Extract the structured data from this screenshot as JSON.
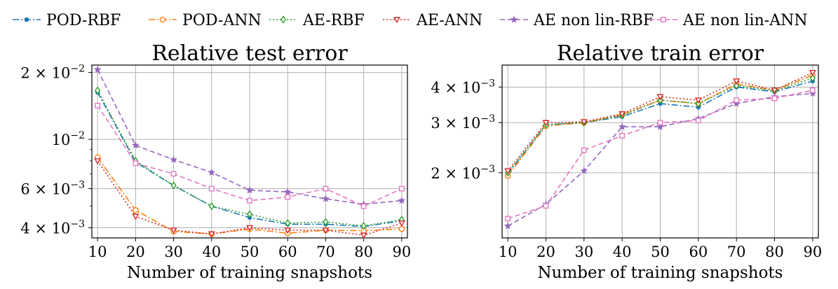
{
  "colors": {
    "POD-RBF": "#1f77b4",
    "POD-ANN": "#ff7f0e",
    "AE-RBF": "#2ca02c",
    "AE-ANN": "#d62728",
    "AE non lin-RBF": "#9467bd",
    "AE non lin-ANN": "#e377c2"
  },
  "legend": {
    "entries": [
      {
        "name": "POD-RBF",
        "marker": "dot",
        "dash": "dashdot"
      },
      {
        "name": "POD-ANN",
        "marker": "circle",
        "dash": "dashdot"
      },
      {
        "name": "AE-RBF",
        "marker": "diamond",
        "dash": "dotted"
      },
      {
        "name": "AE-ANN",
        "marker": "triangle-down",
        "dash": "dotted"
      },
      {
        "name": "AE non lin-RBF",
        "marker": "star",
        "dash": "dashed"
      },
      {
        "name": "AE non lin-ANN",
        "marker": "square",
        "dash": "dashed"
      }
    ]
  },
  "chart_data": [
    {
      "type": "line",
      "title": "Relative test error",
      "xlabel": "Number of training snapshots",
      "ylabel": "",
      "yscale": "log",
      "grid": true,
      "x": [
        10,
        20,
        30,
        40,
        50,
        60,
        70,
        80,
        90
      ],
      "xticks": [
        "10",
        "20",
        "30",
        "40",
        "50",
        "60",
        "70",
        "80",
        "90"
      ],
      "xlim": [
        8.5,
        91.5
      ],
      "ylim": [
        0.0036,
        0.0216
      ],
      "yticks": [
        {
          "value": 0.02,
          "mant": "2 × 10",
          "exp": "−2"
        },
        {
          "value": 0.01,
          "mant": "10",
          "exp": "−2"
        },
        {
          "value": 0.006,
          "mant": "6 × 10",
          "exp": "−3"
        },
        {
          "value": 0.004,
          "mant": "4 × 10",
          "exp": "−3"
        }
      ],
      "yminor": [
        0.003,
        0.005,
        0.007,
        0.008,
        0.009
      ],
      "series": [
        {
          "name": "POD-RBF",
          "values": [
            0.0163,
            0.0079,
            0.0062,
            0.005,
            0.00445,
            0.00415,
            0.00415,
            0.00405,
            0.0043
          ]
        },
        {
          "name": "POD-ANN",
          "values": [
            0.0083,
            0.0048,
            0.00385,
            0.00375,
            0.00395,
            0.00378,
            0.0039,
            0.00388,
            0.00395
          ]
        },
        {
          "name": "AE-RBF",
          "values": [
            0.0166,
            0.008,
            0.0062,
            0.005,
            0.0046,
            0.0042,
            0.00425,
            0.00408,
            0.00435
          ]
        },
        {
          "name": "AE-ANN",
          "values": [
            0.008,
            0.0045,
            0.0039,
            0.00375,
            0.004,
            0.0039,
            0.0039,
            0.0037,
            0.0042
          ]
        },
        {
          "name": "AE non lin-RBF",
          "values": [
            0.0206,
            0.0094,
            0.0081,
            0.0071,
            0.0059,
            0.0058,
            0.0054,
            0.0051,
            0.0053
          ]
        },
        {
          "name": "AE non lin-ANN",
          "values": [
            0.0142,
            0.0078,
            0.007,
            0.006,
            0.0053,
            0.0055,
            0.006,
            0.005,
            0.006
          ]
        }
      ]
    },
    {
      "type": "line",
      "title": "Relative train error",
      "xlabel": "Number of training snapshots",
      "ylabel": "",
      "yscale": "log",
      "grid": true,
      "x": [
        10,
        20,
        30,
        40,
        50,
        60,
        70,
        80,
        90
      ],
      "xticks": [
        "10",
        "20",
        "30",
        "40",
        "50",
        "60",
        "70",
        "80",
        "90"
      ],
      "xlim": [
        8.5,
        91.5
      ],
      "ylim": [
        0.00118,
        0.00478
      ],
      "yticks": [
        {
          "value": 0.004,
          "mant": "4 × 10",
          "exp": "−3"
        },
        {
          "value": 0.003,
          "mant": "3 × 10",
          "exp": "−3"
        },
        {
          "value": 0.002,
          "mant": "2 × 10",
          "exp": "−3"
        }
      ],
      "yminor": [],
      "series": [
        {
          "name": "POD-RBF",
          "values": [
            0.00198,
            0.00295,
            0.003,
            0.00315,
            0.0035,
            0.0034,
            0.004,
            0.00385,
            0.0042
          ]
        },
        {
          "name": "POD-ANN",
          "values": [
            0.00195,
            0.00292,
            0.003,
            0.0032,
            0.0036,
            0.0035,
            0.0041,
            0.0039,
            0.0044
          ]
        },
        {
          "name": "AE-RBF",
          "values": [
            0.002,
            0.00295,
            0.003,
            0.00318,
            0.0036,
            0.0035,
            0.00405,
            0.00388,
            0.0043
          ]
        },
        {
          "name": "AE-ANN",
          "values": [
            0.00203,
            0.003,
            0.00302,
            0.00322,
            0.0037,
            0.0036,
            0.0042,
            0.0039,
            0.0045
          ]
        },
        {
          "name": "AE non lin-RBF",
          "values": [
            0.0013,
            0.00155,
            0.00203,
            0.0029,
            0.0029,
            0.0031,
            0.0035,
            0.0037,
            0.0038
          ]
        },
        {
          "name": "AE non lin-ANN",
          "values": [
            0.00138,
            0.00153,
            0.0024,
            0.0027,
            0.003,
            0.00305,
            0.0036,
            0.00365,
            0.0039
          ]
        }
      ]
    }
  ]
}
